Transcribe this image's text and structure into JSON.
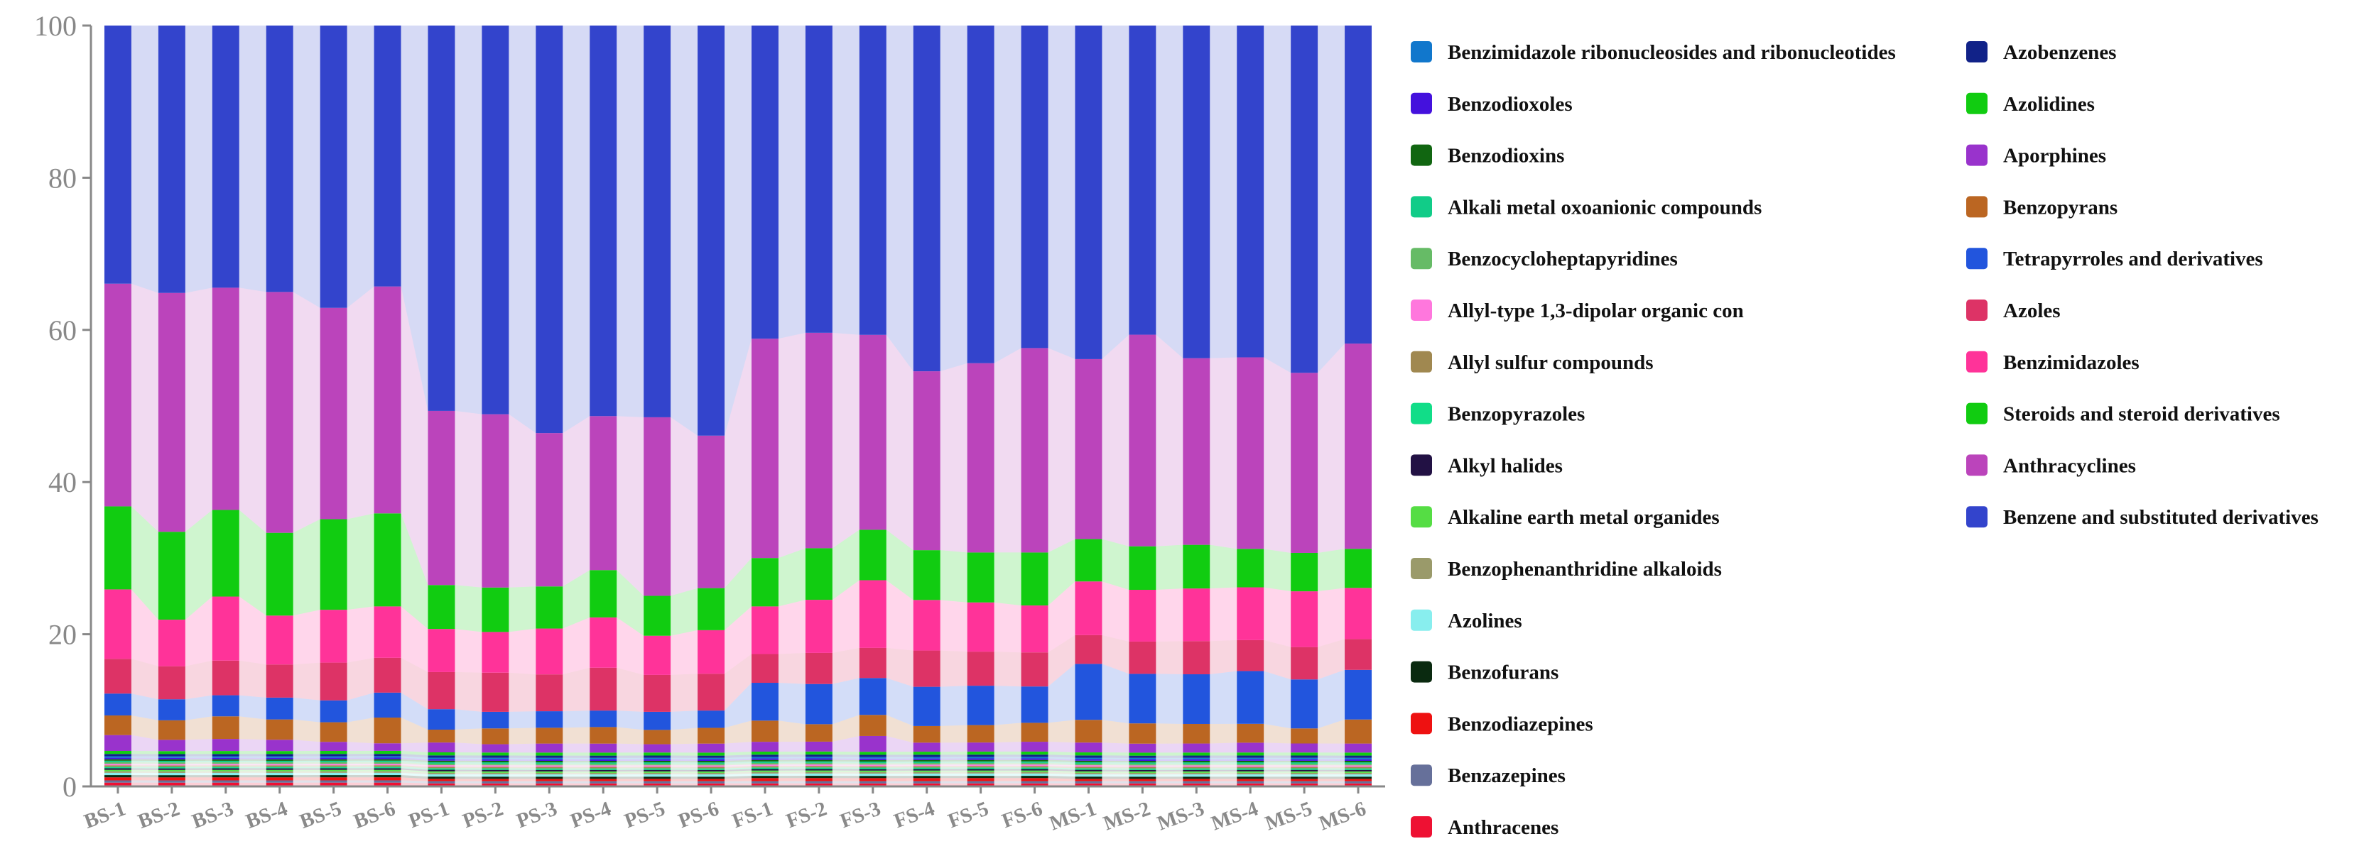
{
  "chart_data": {
    "type": "bar",
    "stacked": true,
    "ylim": [
      0,
      100
    ],
    "yticks": [
      0,
      20,
      40,
      60,
      80,
      100
    ],
    "categories": [
      "BS-1",
      "BS-2",
      "BS-3",
      "BS-4",
      "BS-5",
      "BS-6",
      "PS-1",
      "PS-2",
      "PS-3",
      "PS-4",
      "PS-5",
      "PS-6",
      "FS-1",
      "FS-2",
      "FS-3",
      "FS-4",
      "FS-5",
      "FS-6",
      "MS-1",
      "MS-2",
      "MS-3",
      "MS-4",
      "MS-5",
      "MS-6"
    ],
    "legend_position": "right",
    "series": [
      {
        "name": "Anthracenes",
        "color": "#ee1133",
        "values": [
          0.5,
          0.5,
          0.5,
          0.5,
          0.5,
          0.5,
          0.4,
          0.4,
          0.4,
          0.4,
          0.4,
          0.4,
          0.4,
          0.4,
          0.4,
          0.4,
          0.4,
          0.4,
          0.4,
          0.4,
          0.4,
          0.4,
          0.4,
          0.4
        ]
      },
      {
        "name": "Benzazepines",
        "color": "#66709a",
        "values": [
          0.3,
          0.3,
          0.3,
          0.3,
          0.3,
          0.3,
          0.3,
          0.3,
          0.3,
          0.3,
          0.3,
          0.3,
          0.3,
          0.3,
          0.3,
          0.3,
          0.3,
          0.3,
          0.3,
          0.3,
          0.3,
          0.3,
          0.3,
          0.3
        ]
      },
      {
        "name": "Benzodiazepines",
        "color": "#ee1111",
        "values": [
          0.4,
          0.4,
          0.4,
          0.4,
          0.4,
          0.4,
          0.3,
          0.3,
          0.3,
          0.3,
          0.3,
          0.3,
          0.4,
          0.4,
          0.4,
          0.4,
          0.4,
          0.4,
          0.3,
          0.3,
          0.3,
          0.3,
          0.3,
          0.3
        ]
      },
      {
        "name": "Benzofurans",
        "color": "#0a2a10",
        "values": [
          0.3,
          0.3,
          0.3,
          0.3,
          0.3,
          0.3,
          0.3,
          0.3,
          0.3,
          0.3,
          0.3,
          0.3,
          0.3,
          0.3,
          0.3,
          0.3,
          0.3,
          0.3,
          0.3,
          0.3,
          0.3,
          0.3,
          0.3,
          0.3
        ]
      },
      {
        "name": "Azolines",
        "color": "#88eeee",
        "values": [
          0.3,
          0.3,
          0.3,
          0.3,
          0.3,
          0.3,
          0.3,
          0.3,
          0.3,
          0.3,
          0.3,
          0.3,
          0.3,
          0.3,
          0.3,
          0.3,
          0.3,
          0.3,
          0.3,
          0.3,
          0.3,
          0.3,
          0.3,
          0.3
        ]
      },
      {
        "name": "Benzophenanthridine alkaloids",
        "color": "#9a9a6a",
        "values": [
          0.2,
          0.2,
          0.2,
          0.2,
          0.2,
          0.2,
          0.2,
          0.2,
          0.2,
          0.2,
          0.2,
          0.2,
          0.2,
          0.2,
          0.2,
          0.2,
          0.2,
          0.2,
          0.2,
          0.2,
          0.2,
          0.2,
          0.2,
          0.2
        ]
      },
      {
        "name": "Alkaline earth metal organides",
        "color": "#55dd44",
        "values": [
          0.2,
          0.2,
          0.2,
          0.2,
          0.2,
          0.2,
          0.2,
          0.2,
          0.2,
          0.2,
          0.2,
          0.2,
          0.2,
          0.2,
          0.2,
          0.2,
          0.2,
          0.2,
          0.2,
          0.2,
          0.2,
          0.2,
          0.2,
          0.2
        ]
      },
      {
        "name": "Alkyl halides",
        "color": "#221144",
        "values": [
          0.2,
          0.2,
          0.2,
          0.2,
          0.2,
          0.2,
          0.2,
          0.2,
          0.2,
          0.2,
          0.2,
          0.2,
          0.2,
          0.2,
          0.2,
          0.2,
          0.2,
          0.2,
          0.2,
          0.2,
          0.2,
          0.2,
          0.2,
          0.2
        ]
      },
      {
        "name": "Benzopyrazoles",
        "color": "#11dd88",
        "values": [
          0.2,
          0.2,
          0.2,
          0.2,
          0.2,
          0.2,
          0.2,
          0.2,
          0.2,
          0.2,
          0.2,
          0.2,
          0.2,
          0.2,
          0.2,
          0.2,
          0.2,
          0.2,
          0.2,
          0.2,
          0.2,
          0.2,
          0.2,
          0.2
        ]
      },
      {
        "name": "Allyl sulfur compounds",
        "color": "#a08850",
        "values": [
          0.2,
          0.2,
          0.2,
          0.2,
          0.2,
          0.2,
          0.2,
          0.2,
          0.2,
          0.2,
          0.2,
          0.2,
          0.2,
          0.2,
          0.2,
          0.2,
          0.2,
          0.2,
          0.2,
          0.2,
          0.2,
          0.2,
          0.2,
          0.2
        ]
      },
      {
        "name": "Allyl-type 1,3-dipolar organic con",
        "color": "#ff77dd",
        "values": [
          0.2,
          0.2,
          0.2,
          0.2,
          0.2,
          0.2,
          0.2,
          0.2,
          0.2,
          0.2,
          0.2,
          0.2,
          0.2,
          0.2,
          0.2,
          0.2,
          0.2,
          0.2,
          0.2,
          0.2,
          0.2,
          0.2,
          0.2,
          0.2
        ]
      },
      {
        "name": "Benzocycloheptapyridines",
        "color": "#66bb66",
        "values": [
          0.2,
          0.2,
          0.2,
          0.2,
          0.2,
          0.2,
          0.2,
          0.2,
          0.2,
          0.2,
          0.2,
          0.2,
          0.2,
          0.2,
          0.2,
          0.2,
          0.2,
          0.2,
          0.2,
          0.2,
          0.2,
          0.2,
          0.2,
          0.2
        ]
      },
      {
        "name": "Alkali metal oxoanionic compounds",
        "color": "#11cc88",
        "values": [
          0.2,
          0.2,
          0.2,
          0.2,
          0.2,
          0.2,
          0.2,
          0.2,
          0.2,
          0.2,
          0.2,
          0.2,
          0.2,
          0.2,
          0.2,
          0.2,
          0.2,
          0.2,
          0.2,
          0.2,
          0.2,
          0.2,
          0.2,
          0.2
        ]
      },
      {
        "name": "Benzodioxins",
        "color": "#116611",
        "values": [
          0.2,
          0.2,
          0.2,
          0.2,
          0.2,
          0.2,
          0.2,
          0.2,
          0.2,
          0.2,
          0.2,
          0.2,
          0.2,
          0.2,
          0.2,
          0.2,
          0.2,
          0.2,
          0.2,
          0.2,
          0.2,
          0.2,
          0.2,
          0.2
        ]
      },
      {
        "name": "Benzodioxoles",
        "color": "#4411dd",
        "values": [
          0.2,
          0.2,
          0.2,
          0.2,
          0.2,
          0.2,
          0.2,
          0.2,
          0.2,
          0.2,
          0.2,
          0.2,
          0.2,
          0.2,
          0.2,
          0.2,
          0.2,
          0.2,
          0.2,
          0.2,
          0.2,
          0.2,
          0.2,
          0.2
        ]
      },
      {
        "name": "Benzimidazole ribonucleosides and ribonucleotides",
        "color": "#1177cc",
        "values": [
          0.2,
          0.2,
          0.2,
          0.2,
          0.2,
          0.2,
          0.2,
          0.2,
          0.2,
          0.2,
          0.2,
          0.2,
          0.2,
          0.2,
          0.2,
          0.2,
          0.2,
          0.2,
          0.2,
          0.2,
          0.2,
          0.2,
          0.2,
          0.2
        ]
      },
      {
        "name": "Azobenzenes",
        "color": "#112288",
        "values": [
          0.3,
          0.3,
          0.3,
          0.3,
          0.3,
          0.3,
          0.3,
          0.3,
          0.3,
          0.3,
          0.3,
          0.3,
          0.3,
          0.3,
          0.3,
          0.3,
          0.3,
          0.3,
          0.3,
          0.3,
          0.3,
          0.3,
          0.3,
          0.3
        ]
      },
      {
        "name": "Azolidines",
        "color": "#11cc11",
        "values": [
          0.4,
          0.4,
          0.4,
          0.4,
          0.4,
          0.4,
          0.4,
          0.4,
          0.4,
          0.4,
          0.4,
          0.4,
          0.4,
          0.4,
          0.4,
          0.4,
          0.4,
          0.4,
          0.4,
          0.4,
          0.4,
          0.4,
          0.4,
          0.4
        ]
      },
      {
        "name": "Aporphines",
        "color": "#9933cc",
        "values": [
          2.1,
          1.5,
          1.6,
          1.5,
          1.2,
          1.0,
          1.3,
          1.1,
          1.2,
          1.2,
          1.1,
          1.2,
          1.3,
          1.3,
          2.1,
          1.2,
          1.2,
          1.3,
          1.3,
          1.2,
          1.2,
          1.3,
          1.2,
          1.2
        ]
      },
      {
        "name": "Benzopyrans",
        "color": "#bb6622",
        "values": [
          2.6,
          2.6,
          3.0,
          2.7,
          2.6,
          3.4,
          1.7,
          2.1,
          2.1,
          2.2,
          1.9,
          2.1,
          2.8,
          2.3,
          2.8,
          2.2,
          2.3,
          2.5,
          3.0,
          2.7,
          2.6,
          2.5,
          2.0,
          3.2
        ]
      },
      {
        "name": "Tetrapyrroles and derivatives",
        "color": "#2255dd",
        "values": [
          2.9,
          2.8,
          2.8,
          2.9,
          2.9,
          3.3,
          2.7,
          2.2,
          2.2,
          2.2,
          2.4,
          2.3,
          5.0,
          5.3,
          4.9,
          5.2,
          5.2,
          4.8,
          7.4,
          6.6,
          6.6,
          7.0,
          6.5,
          6.6
        ]
      },
      {
        "name": "Azoles",
        "color": "#dd3366",
        "values": [
          4.6,
          4.4,
          4.6,
          4.4,
          5.0,
          4.6,
          4.9,
          5.2,
          4.9,
          5.7,
          4.9,
          4.9,
          3.8,
          4.1,
          4.0,
          4.8,
          4.5,
          4.5,
          3.8,
          4.3,
          4.4,
          4.1,
          4.3,
          4.1
        ]
      },
      {
        "name": "Benzimidazoles",
        "color": "#ff3399",
        "values": [
          9.2,
          6.2,
          8.5,
          6.5,
          7.0,
          6.8,
          5.7,
          5.4,
          6.1,
          6.7,
          5.2,
          5.8,
          6.3,
          7.0,
          9.0,
          6.7,
          6.5,
          6.2,
          7.1,
          6.9,
          7.0,
          7.0,
          7.4,
          6.8
        ]
      },
      {
        "name": "Steroids and steroid derivatives",
        "color": "#11cc11",
        "values": [
          11.0,
          11.7,
          11.5,
          11.0,
          12.0,
          12.3,
          5.8,
          5.9,
          5.6,
          6.3,
          5.3,
          5.6,
          6.4,
          6.8,
          6.7,
          6.6,
          6.6,
          7.0,
          5.6,
          5.8,
          5.8,
          5.1,
          5.1,
          5.2
        ]
      },
      {
        "name": "Anthracyclines",
        "color": "#bb44bb",
        "values": [
          29.5,
          31.8,
          29.5,
          32.0,
          28.0,
          30.0,
          23.0,
          23.0,
          20.4,
          20.5,
          23.7,
          20.3,
          29.0,
          28.4,
          25.9,
          23.7,
          25.0,
          27.0,
          23.8,
          28.2,
          24.8,
          25.4,
          23.9,
          27.3
        ]
      },
      {
        "name": "Benzene and substituted derivatives",
        "color": "#3344cc",
        "values": [
          34.2,
          35.6,
          34.8,
          35.4,
          37.4,
          34.5,
          50.9,
          51.6,
          54.2,
          52.0,
          52.0,
          54.6,
          41.4,
          40.5,
          41.1,
          45.8,
          44.6,
          42.6,
          44.1,
          41.2,
          44.2,
          44.0,
          46.1,
          42.3
        ]
      }
    ],
    "legend_columns": [
      [
        "Benzimidazole ribonucleosides and ribonucleotides",
        "Benzodioxoles",
        "Benzodioxins",
        "Alkali metal oxoanionic compounds",
        "Benzocycloheptapyridines",
        "Allyl-type 1,3-dipolar organic con",
        "Allyl sulfur compounds",
        "Benzopyrazoles",
        "Alkyl halides",
        "Alkaline earth metal organides",
        "Benzophenanthridine alkaloids",
        "Azolines",
        "Benzofurans",
        "Benzodiazepines",
        "Benzazepines",
        "Anthracenes"
      ],
      [
        "Azobenzenes",
        "Azolidines",
        "Aporphines",
        "Benzopyrans",
        "Tetrapyrroles and derivatives",
        "Azoles",
        "Benzimidazoles",
        "Steroids and steroid derivatives",
        "Anthracyclines",
        "Benzene and substituted derivatives"
      ]
    ]
  }
}
